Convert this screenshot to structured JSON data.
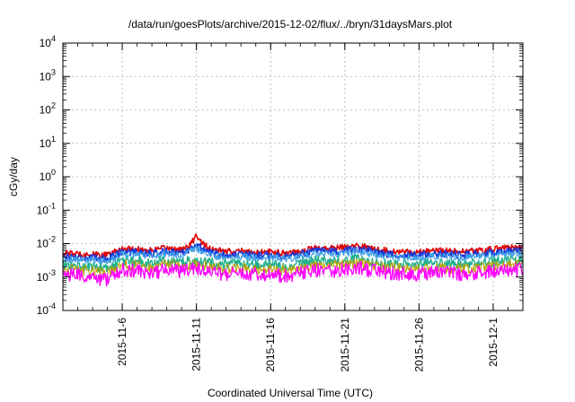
{
  "chart_data": {
    "type": "line",
    "title": "/data/run/goesPlots/archive/2015-12-02/flux/../bryn/31daysMars.plot",
    "xlabel": "Coordinated Universal Time (UTC)",
    "ylabel": "cGy/day",
    "y_scale": "log",
    "ylim": [
      0.0001,
      10000
    ],
    "xlim": [
      "2015-11-02",
      "2015-12-03"
    ],
    "grid": true,
    "y_ticks": [
      {
        "base": "10",
        "exp": "-4",
        "value": 0.0001
      },
      {
        "base": "10",
        "exp": "-3",
        "value": 0.001
      },
      {
        "base": "10",
        "exp": "-2",
        "value": 0.01
      },
      {
        "base": "10",
        "exp": "-1",
        "value": 0.1
      },
      {
        "base": "10",
        "exp": "0",
        "value": 1
      },
      {
        "base": "10",
        "exp": "1",
        "value": 10
      },
      {
        "base": "10",
        "exp": "2",
        "value": 100
      },
      {
        "base": "10",
        "exp": "3",
        "value": 1000
      },
      {
        "base": "10",
        "exp": "4",
        "value": 10000
      }
    ],
    "x_ticks": [
      "2015-11-6",
      "2015-11-11",
      "2015-11-16",
      "2015-11-21",
      "2015-11-26",
      "2015-12-1"
    ],
    "x_tick_dates": [
      "2015-11-06",
      "2015-11-11",
      "2015-11-16",
      "2015-11-21",
      "2015-11-26",
      "2015-12-01"
    ],
    "series": [
      {
        "color": "#e00000",
        "width": 1.6,
        "noise": 0.18,
        "points": [
          [
            "2015-11-02",
            0.0052
          ],
          [
            "2015-11-03",
            0.0049
          ],
          [
            "2015-11-04",
            0.0047
          ],
          [
            "2015-11-05",
            0.0045
          ],
          [
            "2015-11-06",
            0.0072
          ],
          [
            "2015-11-07",
            0.0068
          ],
          [
            "2015-11-08",
            0.0062
          ],
          [
            "2015-11-09",
            0.0075
          ],
          [
            "2015-11-10",
            0.0065
          ],
          [
            "2015-11-10.5",
            0.0082
          ],
          [
            "2015-11-11",
            0.0175
          ],
          [
            "2015-11-11.5",
            0.0095
          ],
          [
            "2015-11-12",
            0.0065
          ],
          [
            "2015-11-13",
            0.0058
          ],
          [
            "2015-11-14",
            0.006
          ],
          [
            "2015-11-15",
            0.0055
          ],
          [
            "2015-11-16",
            0.0056
          ],
          [
            "2015-11-17",
            0.0054
          ],
          [
            "2015-11-18",
            0.006
          ],
          [
            "2015-11-19",
            0.0075
          ],
          [
            "2015-11-20",
            0.0072
          ],
          [
            "2015-11-21",
            0.0078
          ],
          [
            "2015-11-22",
            0.0085
          ],
          [
            "2015-11-23",
            0.0072
          ],
          [
            "2015-11-24",
            0.006
          ],
          [
            "2015-11-25",
            0.0058
          ],
          [
            "2015-11-26",
            0.0056
          ],
          [
            "2015-11-27",
            0.0062
          ],
          [
            "2015-11-28",
            0.006
          ],
          [
            "2015-11-29",
            0.0058
          ],
          [
            "2015-11-30",
            0.0062
          ],
          [
            "2015-12-01",
            0.0068
          ],
          [
            "2015-12-02",
            0.0078
          ],
          [
            "2015-12-03",
            0.0074
          ]
        ]
      },
      {
        "color": "#1a3ad8",
        "width": 1.6,
        "noise": 0.22,
        "points": [
          [
            "2015-11-02",
            0.0042
          ],
          [
            "2015-11-03",
            0.0039
          ],
          [
            "2015-11-04",
            0.0037
          ],
          [
            "2015-11-05",
            0.0036
          ],
          [
            "2015-11-06",
            0.0058
          ],
          [
            "2015-11-07",
            0.0055
          ],
          [
            "2015-11-08",
            0.005
          ],
          [
            "2015-11-09",
            0.006
          ],
          [
            "2015-11-10",
            0.0052
          ],
          [
            "2015-11-11",
            0.009
          ],
          [
            "2015-11-12",
            0.0052
          ],
          [
            "2015-11-13",
            0.0046
          ],
          [
            "2015-11-14",
            0.0048
          ],
          [
            "2015-11-15",
            0.0044
          ],
          [
            "2015-11-16",
            0.0045
          ],
          [
            "2015-11-17",
            0.0043
          ],
          [
            "2015-11-18",
            0.0048
          ],
          [
            "2015-11-19",
            0.006
          ],
          [
            "2015-11-20",
            0.0058
          ],
          [
            "2015-11-21",
            0.0062
          ],
          [
            "2015-11-22",
            0.0068
          ],
          [
            "2015-11-23",
            0.0058
          ],
          [
            "2015-11-24",
            0.0048
          ],
          [
            "2015-11-25",
            0.0046
          ],
          [
            "2015-11-26",
            0.0045
          ],
          [
            "2015-11-27",
            0.005
          ],
          [
            "2015-11-28",
            0.0048
          ],
          [
            "2015-11-29",
            0.0046
          ],
          [
            "2015-11-30",
            0.005
          ],
          [
            "2015-12-01",
            0.0054
          ],
          [
            "2015-12-02",
            0.0062
          ],
          [
            "2015-12-03",
            0.0058
          ]
        ]
      },
      {
        "color": "#3fa0e8",
        "width": 1.2,
        "noise": 0.22,
        "points": [
          [
            "2015-11-02",
            0.0035
          ],
          [
            "2015-11-03",
            0.0033
          ],
          [
            "2015-11-04",
            0.0031
          ],
          [
            "2015-11-05",
            0.003
          ],
          [
            "2015-11-06",
            0.0048
          ],
          [
            "2015-11-07",
            0.0046
          ],
          [
            "2015-11-08",
            0.0042
          ],
          [
            "2015-11-09",
            0.005
          ],
          [
            "2015-11-10",
            0.0044
          ],
          [
            "2015-11-11",
            0.007
          ],
          [
            "2015-11-12",
            0.0044
          ],
          [
            "2015-11-13",
            0.0039
          ],
          [
            "2015-11-14",
            0.0041
          ],
          [
            "2015-11-15",
            0.0037
          ],
          [
            "2015-11-16",
            0.0038
          ],
          [
            "2015-11-17",
            0.0036
          ],
          [
            "2015-11-18",
            0.004
          ],
          [
            "2015-11-19",
            0.005
          ],
          [
            "2015-11-20",
            0.0048
          ],
          [
            "2015-11-21",
            0.0052
          ],
          [
            "2015-11-22",
            0.0057
          ],
          [
            "2015-11-23",
            0.0048
          ],
          [
            "2015-11-24",
            0.004
          ],
          [
            "2015-11-25",
            0.0039
          ],
          [
            "2015-11-26",
            0.0038
          ],
          [
            "2015-11-27",
            0.0042
          ],
          [
            "2015-11-28",
            0.004
          ],
          [
            "2015-11-29",
            0.0039
          ],
          [
            "2015-11-30",
            0.0042
          ],
          [
            "2015-12-01",
            0.0045
          ],
          [
            "2015-12-02",
            0.0052
          ],
          [
            "2015-12-03",
            0.0049
          ]
        ]
      },
      {
        "color": "#20b090",
        "width": 1.4,
        "noise": 0.3,
        "points": [
          [
            "2015-11-02",
            0.0023
          ],
          [
            "2015-11-03",
            0.0021
          ],
          [
            "2015-11-04",
            0.002
          ],
          [
            "2015-11-05",
            0.0018
          ],
          [
            "2015-11-06",
            0.003
          ],
          [
            "2015-11-07",
            0.0029
          ],
          [
            "2015-11-08",
            0.0026
          ],
          [
            "2015-11-09",
            0.0031
          ],
          [
            "2015-11-10",
            0.0027
          ],
          [
            "2015-11-11",
            0.0033
          ],
          [
            "2015-11-12",
            0.0027
          ],
          [
            "2015-11-13",
            0.0024
          ],
          [
            "2015-11-14",
            0.0025
          ],
          [
            "2015-11-15",
            0.0023
          ],
          [
            "2015-11-16",
            0.0023
          ],
          [
            "2015-11-17",
            0.0022
          ],
          [
            "2015-11-18",
            0.0025
          ],
          [
            "2015-11-19",
            0.0031
          ],
          [
            "2015-11-20",
            0.003
          ],
          [
            "2015-11-21",
            0.0032
          ],
          [
            "2015-11-22",
            0.0034
          ],
          [
            "2015-11-23",
            0.0029
          ],
          [
            "2015-11-24",
            0.0025
          ],
          [
            "2015-11-25",
            0.0024
          ],
          [
            "2015-11-26",
            0.0023
          ],
          [
            "2015-11-27",
            0.0026
          ],
          [
            "2015-11-28",
            0.0025
          ],
          [
            "2015-11-29",
            0.0024
          ],
          [
            "2015-11-30",
            0.0026
          ],
          [
            "2015-12-01",
            0.0028
          ],
          [
            "2015-12-02",
            0.0031
          ],
          [
            "2015-12-03",
            0.0029
          ]
        ]
      },
      {
        "color": "#b8a000",
        "width": 1.0,
        "noise": 0.32,
        "points": [
          [
            "2015-11-02",
            0.0017
          ],
          [
            "2015-11-03",
            0.0016
          ],
          [
            "2015-11-04",
            0.0015
          ],
          [
            "2015-11-05",
            0.0013
          ],
          [
            "2015-11-06",
            0.0023
          ],
          [
            "2015-11-07",
            0.0022
          ],
          [
            "2015-11-08",
            0.0019
          ],
          [
            "2015-11-09",
            0.0024
          ],
          [
            "2015-11-10",
            0.002
          ],
          [
            "2015-11-11",
            0.0025
          ],
          [
            "2015-11-12",
            0.002
          ],
          [
            "2015-11-13",
            0.0018
          ],
          [
            "2015-11-14",
            0.0019
          ],
          [
            "2015-11-15",
            0.0017
          ],
          [
            "2015-11-16",
            0.0017
          ],
          [
            "2015-11-17",
            0.0016
          ],
          [
            "2015-11-18",
            0.0019
          ],
          [
            "2015-11-19",
            0.0023
          ],
          [
            "2015-11-20",
            0.0022
          ],
          [
            "2015-11-21",
            0.0024
          ],
          [
            "2015-11-22",
            0.0026
          ],
          [
            "2015-11-23",
            0.0022
          ],
          [
            "2015-11-24",
            0.0019
          ],
          [
            "2015-11-25",
            0.0018
          ],
          [
            "2015-11-26",
            0.0017
          ],
          [
            "2015-11-27",
            0.0019
          ],
          [
            "2015-11-28",
            0.0018
          ],
          [
            "2015-11-29",
            0.0018
          ],
          [
            "2015-11-30",
            0.0019
          ],
          [
            "2015-12-01",
            0.0021
          ],
          [
            "2015-12-02",
            0.0023
          ],
          [
            "2015-12-03",
            0.0022
          ]
        ]
      },
      {
        "color": "#ff00ff",
        "width": 1.3,
        "noise": 0.42,
        "points": [
          [
            "2015-11-02",
            0.0012
          ],
          [
            "2015-11-03",
            0.0011
          ],
          [
            "2015-11-04",
            0.001
          ],
          [
            "2015-11-05",
            0.0008
          ],
          [
            "2015-11-06",
            0.0016
          ],
          [
            "2015-11-07",
            0.0015
          ],
          [
            "2015-11-08",
            0.0013
          ],
          [
            "2015-11-09",
            0.0017
          ],
          [
            "2015-11-10",
            0.0014
          ],
          [
            "2015-11-11",
            0.0018
          ],
          [
            "2015-11-12",
            0.0014
          ],
          [
            "2015-11-13",
            0.0012
          ],
          [
            "2015-11-14",
            0.0013
          ],
          [
            "2015-11-15",
            0.0012
          ],
          [
            "2015-11-16",
            0.0012
          ],
          [
            "2015-11-17",
            0.0011
          ],
          [
            "2015-11-18",
            0.0013
          ],
          [
            "2015-11-19",
            0.0016
          ],
          [
            "2015-11-20",
            0.0015
          ],
          [
            "2015-11-21",
            0.0017
          ],
          [
            "2015-11-22",
            0.0019
          ],
          [
            "2015-11-23",
            0.0015
          ],
          [
            "2015-11-24",
            0.0013
          ],
          [
            "2015-11-25",
            0.0012
          ],
          [
            "2015-11-26",
            0.0012
          ],
          [
            "2015-11-27",
            0.0014
          ],
          [
            "2015-11-28",
            0.0013
          ],
          [
            "2015-11-29",
            0.0012
          ],
          [
            "2015-11-30",
            0.0014
          ],
          [
            "2015-12-01",
            0.0015
          ],
          [
            "2015-12-02",
            0.0017
          ],
          [
            "2015-12-03",
            0.0016
          ]
        ]
      }
    ]
  }
}
